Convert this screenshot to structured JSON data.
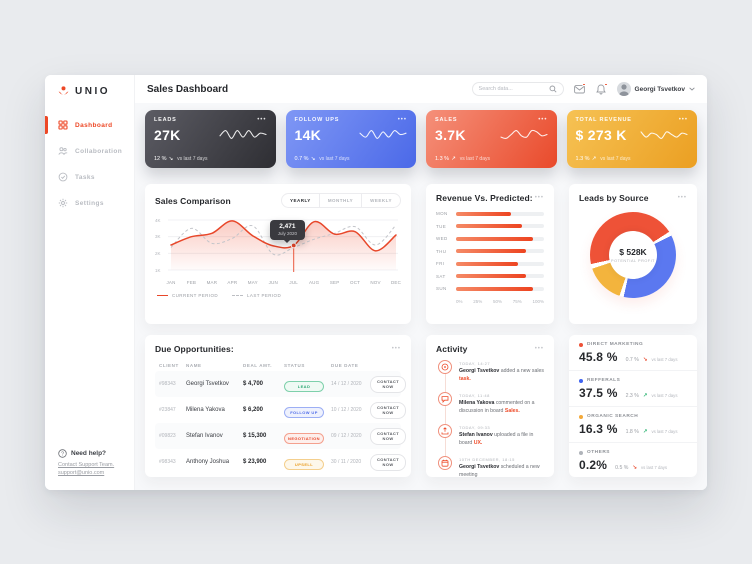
{
  "colors": {
    "accent": "#ed4826",
    "page_bg": "#e9ebee",
    "content_bg": "#f7f8fa",
    "chart_red": "#e8472a",
    "chart_gray_dash": "#c3c5ca",
    "donut_red": "#ee5237",
    "donut_blue": "#5b78f0",
    "donut_yellow": "#f3b43d",
    "donut_gray": "#b8bcc2"
  },
  "sidebar": {
    "logo": "UNIO",
    "items": [
      {
        "label": "Dashboard",
        "icon": "grid",
        "active": true
      },
      {
        "label": "Collaboration",
        "icon": "people",
        "active": false
      },
      {
        "label": "Tasks",
        "icon": "tasks",
        "active": false
      },
      {
        "label": "Settings",
        "icon": "gear",
        "active": false
      }
    ],
    "help_title": "Need help?",
    "help_link": "Contact Support Team.",
    "help_email": "support@unio.com"
  },
  "header": {
    "title": "Sales Dashboard",
    "search_placeholder": "Search data...",
    "user_name": "Georgi Tsvetkov"
  },
  "kpis": [
    {
      "label": "LEADS",
      "value": "27K",
      "delta": "12 %",
      "direction": "down",
      "note": "vs last 7 days",
      "gradient": "linear-gradient(125deg,#5c5c64 0%,#2e2e33 100%)",
      "spark": [
        4,
        8,
        2,
        8,
        3,
        8,
        3,
        6,
        5
      ]
    },
    {
      "label": "FOLLOW UPS",
      "value": "14K",
      "delta": "0.7 %",
      "direction": "down",
      "note": "vs last 7 days",
      "gradient": "linear-gradient(125deg,#7f97f5 0%,#4b69e8 100%)",
      "spark": [
        6,
        3,
        8,
        2,
        7,
        3,
        8,
        5,
        6
      ]
    },
    {
      "label": "SALES",
      "value": "3.7K",
      "delta": "1.3 %",
      "direction": "up",
      "note": "vs last 7 days",
      "gradient": "linear-gradient(125deg,#f5907a 0%,#e94a2b 100%)",
      "spark": [
        3,
        2,
        5,
        8,
        4,
        3,
        8,
        7,
        4,
        5
      ]
    },
    {
      "label": "TOTAL REVENUE",
      "value": "$ 273 K",
      "delta": "1.3 %",
      "direction": "up",
      "note": "vs last 7 days",
      "gradient": "linear-gradient(125deg,#f6c254 0%,#eb9f22 100%)",
      "spark": [
        7,
        3,
        6,
        5,
        2,
        7,
        5,
        3,
        6,
        5
      ]
    }
  ],
  "chart_data": [
    {
      "type": "line",
      "title": "Sales Comparison",
      "tabs": [
        "YEARLY",
        "MONTHLY",
        "WEEKLY"
      ],
      "active_tab": "YEARLY",
      "x": [
        "JAN",
        "FEB",
        "MAR",
        "APR",
        "MAY",
        "JUN",
        "JUL",
        "AUG",
        "SEP",
        "OCT",
        "NOV",
        "DEC"
      ],
      "yticks": [
        "4K",
        "3K",
        "2K",
        "1K"
      ],
      "ylim": [
        1,
        4
      ],
      "series": [
        {
          "name": "CURRENT PERIOD",
          "style": "solid",
          "values": [
            2.5,
            3.0,
            3.2,
            3.95,
            3.05,
            2.45,
            2.47,
            3.9,
            3.15,
            3.3,
            2.15,
            3.1
          ]
        },
        {
          "name": "LAST PERIOD",
          "style": "dashed",
          "values": [
            2.35,
            3.5,
            2.6,
            2.9,
            3.65,
            1.95,
            2.35,
            2.85,
            3.2,
            3.6,
            2.5,
            3.7
          ]
        }
      ],
      "tooltip": {
        "value": "2,471",
        "label": "July 2020",
        "x_index": 6
      },
      "legend": [
        "CURRENT PERIOD",
        "LAST PERIOD"
      ]
    },
    {
      "type": "bar",
      "title": "Revenue Vs. Predicted:",
      "categories": [
        "MON",
        "TUE",
        "WED",
        "THU",
        "FRI",
        "SAT",
        "SUN"
      ],
      "values": [
        62,
        75,
        87,
        80,
        70,
        80,
        88
      ],
      "xticks": [
        "0%",
        "25%",
        "50%",
        "75%",
        "100%"
      ],
      "xlim": [
        0,
        100
      ]
    },
    {
      "type": "donut",
      "title": "Leads by Source",
      "center_value": "$ 528K",
      "center_label": "POTENTIAL PROFIT",
      "segments": [
        {
          "label": "DIRECT MARKETING",
          "value": 45.8,
          "color": "#ee5237"
        },
        {
          "label": "REFFERALS",
          "value": 37.5,
          "color": "#5b78f0"
        },
        {
          "label": "ORGANIC SEARCH",
          "value": 16.3,
          "color": "#f3b43d"
        },
        {
          "label": "OTHERS",
          "value": 0.2,
          "color": "#b8bcc2"
        }
      ]
    }
  ],
  "source_stats": [
    {
      "label": "DIRECT MARKETING",
      "dot": "#ee5237",
      "value": "45.8 %",
      "delta": "0.7 %",
      "direction": "down",
      "note": "vs last 7 days"
    },
    {
      "label": "REFFERALS",
      "dot": "#3f63f0",
      "value": "37.5 %",
      "delta": "2.3 %",
      "direction": "up",
      "note": "vs last 7 days"
    },
    {
      "label": "ORGANIC SEARCH",
      "dot": "#f3a93a",
      "value": "16.3 %",
      "delta": "1.8 %",
      "direction": "up",
      "note": "vs last 7 days"
    },
    {
      "label": "OTHERS",
      "dot": "#b0b4ba",
      "value": "0.2%",
      "delta": "0.5 %",
      "direction": "down",
      "note": "vs last 7 days"
    }
  ],
  "due_opportunities": {
    "title": "Due Opportunities:",
    "columns": [
      "CLIENT",
      "NAME",
      "DEAL AMT.",
      "STATUS",
      "DUE DATE",
      ""
    ],
    "rows": [
      {
        "client": "#98343",
        "name": "Georgi Tsvetkov",
        "amount": "$ 4,700",
        "status": "LEAD",
        "status_color": "green",
        "due": "14 / 12 / 2020",
        "action": "CONTACT NOW"
      },
      {
        "client": "#23847",
        "name": "Milena Yakova",
        "amount": "$ 6,200",
        "status": "FOLLOW UP",
        "status_color": "blue",
        "due": "10 / 12 / 2020",
        "action": "CONTACT NOW"
      },
      {
        "client": "#09823",
        "name": "Stefan Ivanov",
        "amount": "$ 15,300",
        "status": "NEGOTIATION",
        "status_color": "red",
        "due": "09 / 12 / 2020",
        "action": "CONTACT NOW"
      },
      {
        "client": "#98343",
        "name": "Anthony Joshua",
        "amount": "$ 23,900",
        "status": "UPSELL",
        "status_color": "yellow",
        "due": "30 / 11 / 2020",
        "action": "CONTACT NOW"
      }
    ]
  },
  "activity": {
    "title": "Activity",
    "items": [
      {
        "icon": "task",
        "time": "TODAY, 14:27",
        "actor": "Georgi Tsvetkov",
        "text": " added a new sales ",
        "accent": "task."
      },
      {
        "icon": "comment",
        "time": "TODAY, 11:48",
        "actor": "Milena Yakova",
        "text": " commented on a discussion in board ",
        "accent": "Sales."
      },
      {
        "icon": "upload",
        "time": "TODAY, 09:33",
        "actor": "Stefan Ivanov",
        "text": " uploaded a file in board ",
        "accent": "UX."
      },
      {
        "icon": "calendar",
        "time": "10TH DECEMBER, 18:15",
        "actor": "Georgi Tsvetkov",
        "text": " scheduled a new meeting",
        "accent": ""
      }
    ]
  },
  "icons": {
    "more_menu": "•••",
    "chevron_down": "∨",
    "arrow_up": "↗",
    "arrow_down": "↘"
  }
}
